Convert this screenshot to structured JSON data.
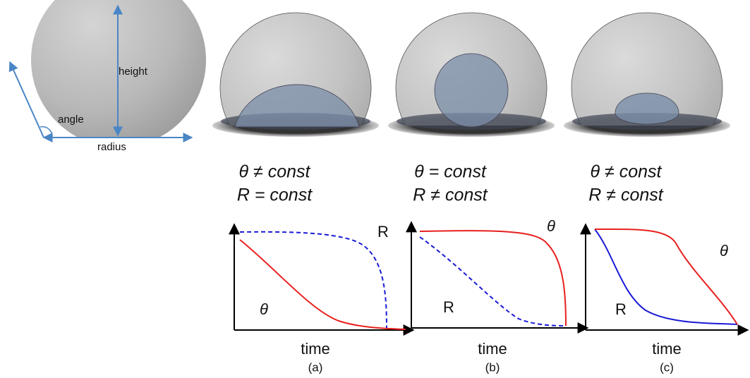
{
  "reference": {
    "height": "height",
    "angle": "angle",
    "radius": "radius"
  },
  "panels": [
    {
      "conditions": [
        "θ ≠ const",
        "R = const"
      ],
      "theta_label": "θ",
      "radius_label": "R",
      "x_axis": "time",
      "caption": "(a)"
    },
    {
      "conditions": [
        "θ = const",
        "R ≠ const"
      ],
      "theta_label": "θ",
      "radius_label": "R",
      "x_axis": "time",
      "caption": "(b)"
    },
    {
      "conditions": [
        "θ ≠ const",
        "R ≠ const"
      ],
      "theta_label": "θ",
      "radius_label": "R",
      "x_axis": "time",
      "caption": "(c)"
    }
  ]
}
